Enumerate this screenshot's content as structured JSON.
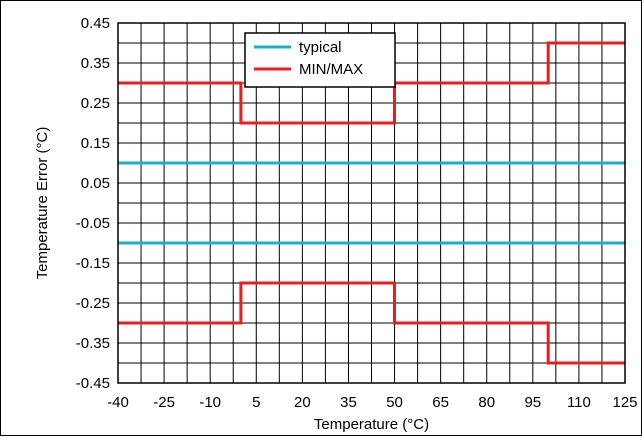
{
  "chart_data": {
    "type": "line",
    "xlabel": "Temperature (°C)",
    "ylabel": "Temperature Error (°C)",
    "xlim": [
      -40,
      125
    ],
    "ylim": [
      -0.45,
      0.45
    ],
    "x_ticks": [
      -40,
      -25,
      -10,
      5,
      20,
      35,
      50,
      65,
      80,
      95,
      110,
      125
    ],
    "x_minor_step": 7.5,
    "y_ticks": [
      -0.45,
      -0.35,
      -0.25,
      -0.15,
      -0.05,
      0.05,
      0.15,
      0.25,
      0.35,
      0.45
    ],
    "y_tick_labels": [
      "-0.45",
      "-0.35",
      "-0.25",
      "-0.15",
      "-0.05",
      "0.05",
      "0.15",
      "0.25",
      "0.35",
      "0.45"
    ],
    "y_minor_step": 0.05,
    "grid": true,
    "legend_position": "top-center",
    "series": [
      {
        "name": "typical",
        "color": "#1aafc4",
        "lines": [
          {
            "x": [
              -40,
              125
            ],
            "y": [
              0.1,
              0.1
            ]
          },
          {
            "x": [
              -40,
              125
            ],
            "y": [
              -0.1,
              -0.1
            ]
          }
        ]
      },
      {
        "name": "MIN/MAX",
        "color": "#ee1c1c",
        "lines": [
          {
            "x": [
              -40,
              0,
              0,
              50,
              50,
              100,
              100,
              125
            ],
            "y": [
              0.3,
              0.3,
              0.2,
              0.2,
              0.3,
              0.3,
              0.4,
              0.4
            ]
          },
          {
            "x": [
              -40,
              0,
              0,
              50,
              50,
              100,
              100,
              125
            ],
            "y": [
              -0.3,
              -0.3,
              -0.2,
              -0.2,
              -0.3,
              -0.3,
              -0.4,
              -0.4
            ]
          }
        ]
      }
    ]
  }
}
